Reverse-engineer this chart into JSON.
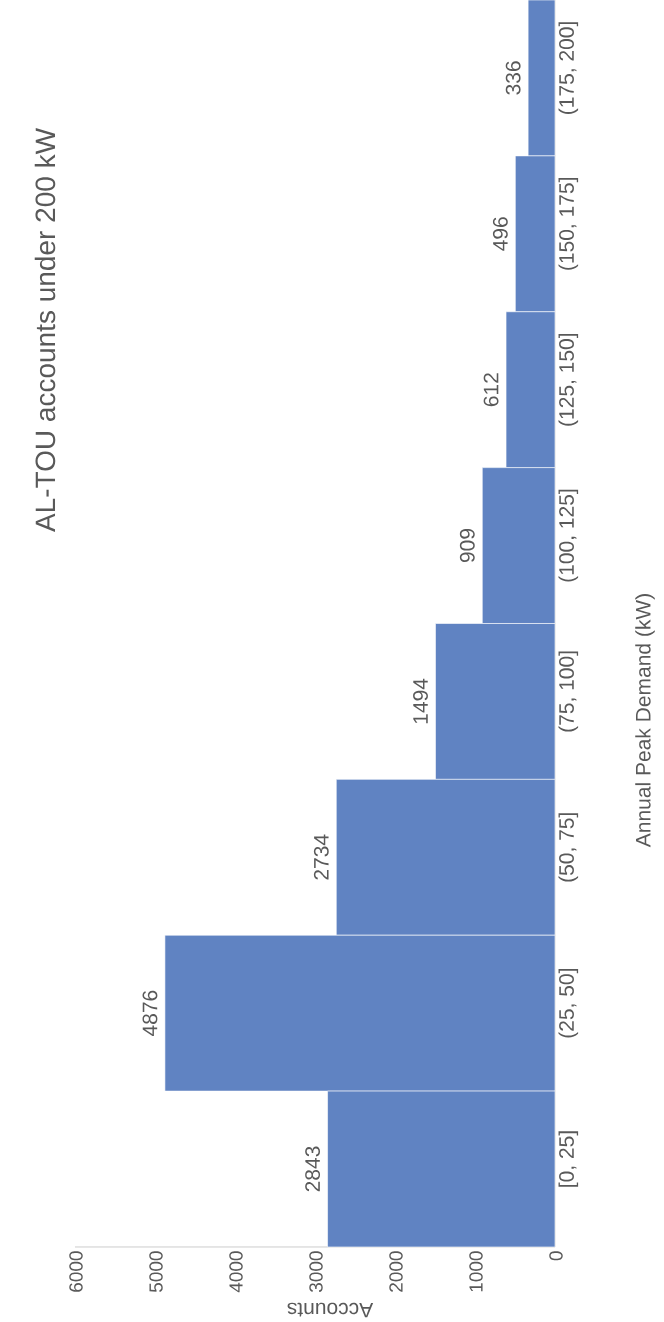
{
  "chart_data": {
    "type": "bar",
    "orientation": "horizontal",
    "title": "AL-TOU accounts under 200 kW",
    "xlabel": "Accounts",
    "ylabel": "Annual Peak Demand (kW)",
    "categories": [
      "(175, 200]",
      "(150, 175]",
      "(125, 150]",
      "(100, 125]",
      "(75, 100]",
      "(50, 75]",
      "(25, 50]",
      "[0, 25]"
    ],
    "values": [
      336,
      496,
      612,
      909,
      1494,
      2734,
      4876,
      2843
    ],
    "color": "#6083c2",
    "xlim": [
      6000,
      0
    ],
    "xticks": [
      6000,
      5000,
      4000,
      3000,
      2000,
      1000,
      0
    ],
    "data_labels": true
  }
}
